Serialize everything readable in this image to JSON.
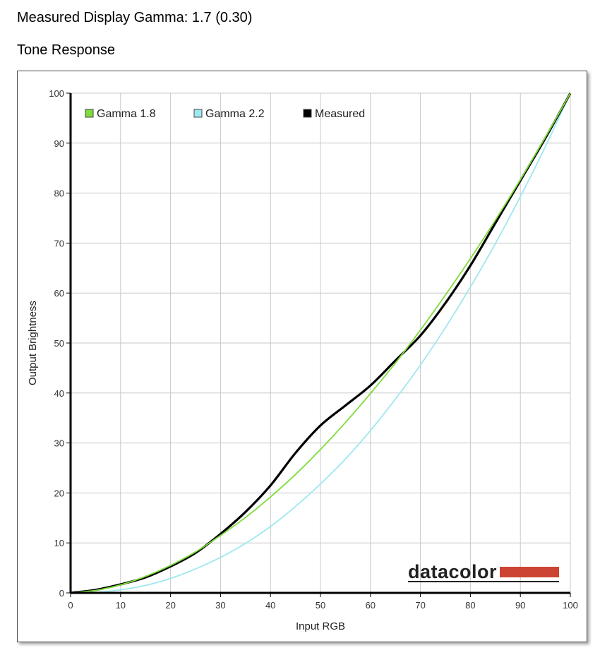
{
  "header": {
    "measured_gamma": "Measured Display Gamma: 1.7 (0.30)",
    "section_title": "Tone Response"
  },
  "logo": {
    "text": "datacolor",
    "bar_color": "#cc4433"
  },
  "chart_data": {
    "type": "line",
    "title": "",
    "xlabel": "Input RGB",
    "ylabel": "Output Brightness",
    "xlim": [
      0,
      100
    ],
    "ylim": [
      0,
      100
    ],
    "xticks": [
      0,
      10,
      20,
      30,
      40,
      50,
      60,
      70,
      80,
      90,
      100
    ],
    "yticks": [
      0,
      10,
      20,
      30,
      40,
      50,
      60,
      70,
      80,
      90,
      100
    ],
    "grid": true,
    "legend_position": "top-left",
    "x": [
      0,
      5,
      10,
      15,
      20,
      25,
      30,
      35,
      40,
      45,
      50,
      55,
      60,
      65,
      70,
      75,
      80,
      85,
      90,
      95,
      100
    ],
    "series": [
      {
        "name": "Gamma 1.8",
        "color": "#7fdc3a",
        "values": [
          0,
          0.5,
          1.6,
          3.3,
          5.5,
          8.2,
          11.5,
          15.1,
          19.2,
          23.7,
          28.7,
          34.1,
          39.9,
          46.0,
          52.6,
          59.6,
          66.9,
          74.6,
          82.7,
          91.2,
          100
        ]
      },
      {
        "name": "Gamma 2.2",
        "color": "#9ee8f0",
        "values": [
          0,
          0.1,
          0.6,
          1.5,
          2.9,
          4.8,
          7.1,
          9.9,
          13.3,
          17.3,
          21.8,
          26.8,
          32.5,
          38.8,
          45.6,
          53.1,
          61.2,
          69.9,
          79.3,
          89.3,
          100
        ]
      },
      {
        "name": "Measured",
        "color": "#000000",
        "values": [
          0,
          0.6,
          1.7,
          3.1,
          5.3,
          8.0,
          11.8,
          16.2,
          21.5,
          28.0,
          33.5,
          37.5,
          41.5,
          46.5,
          51.5,
          58.0,
          65.5,
          74.0,
          82.5,
          91.0,
          100
        ]
      }
    ]
  }
}
